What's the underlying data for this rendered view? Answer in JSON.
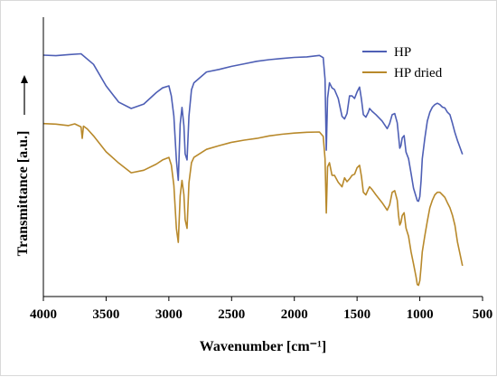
{
  "chart_data": {
    "type": "line",
    "title": "",
    "xlabel": "Wavenumber [cm⁻¹]",
    "ylabel": "Transmittance  [a.u.]",
    "xlim": [
      4000,
      500
    ],
    "x_reversed": true,
    "ylim": [
      0,
      1
    ],
    "y_ticks_shown": false,
    "xticks": [
      "4000",
      "3500",
      "3000",
      "2500",
      "2000",
      "1500",
      "1000",
      "500"
    ],
    "xtick_values": [
      4000,
      3500,
      3000,
      2500,
      2000,
      1500,
      1000,
      500
    ],
    "grid": false,
    "legend_position": "top-right",
    "series": [
      {
        "name": "HP",
        "color": "#4E5FB5",
        "x": [
          4000,
          3900,
          3800,
          3700,
          3600,
          3500,
          3400,
          3300,
          3200,
          3100,
          3050,
          3000,
          2980,
          2960,
          2940,
          2925,
          2910,
          2895,
          2880,
          2870,
          2855,
          2840,
          2820,
          2800,
          2700,
          2600,
          2500,
          2400,
          2300,
          2200,
          2100,
          2000,
          1900,
          1800,
          1770,
          1755,
          1745,
          1735,
          1720,
          1700,
          1680,
          1650,
          1620,
          1600,
          1580,
          1560,
          1540,
          1520,
          1500,
          1480,
          1465,
          1450,
          1430,
          1410,
          1400,
          1380,
          1350,
          1300,
          1260,
          1240,
          1220,
          1200,
          1180,
          1170,
          1160,
          1150,
          1140,
          1125,
          1110,
          1090,
          1070,
          1050,
          1030,
          1020,
          1010,
          1000,
          990,
          980,
          960,
          940,
          920,
          900,
          880,
          860,
          840,
          820,
          800,
          780,
          760,
          740,
          720,
          700,
          680,
          660
        ],
        "y": [
          0.864,
          0.862,
          0.866,
          0.869,
          0.831,
          0.754,
          0.696,
          0.673,
          0.689,
          0.73,
          0.747,
          0.754,
          0.718,
          0.646,
          0.489,
          0.416,
          0.617,
          0.677,
          0.612,
          0.511,
          0.489,
          0.646,
          0.74,
          0.765,
          0.804,
          0.813,
          0.824,
          0.833,
          0.842,
          0.848,
          0.852,
          0.856,
          0.858,
          0.863,
          0.855,
          0.778,
          0.524,
          0.71,
          0.765,
          0.747,
          0.741,
          0.709,
          0.645,
          0.636,
          0.655,
          0.718,
          0.718,
          0.709,
          0.732,
          0.75,
          0.706,
          0.651,
          0.642,
          0.66,
          0.673,
          0.663,
          0.651,
          0.628,
          0.601,
          0.619,
          0.651,
          0.655,
          0.622,
          0.577,
          0.531,
          0.54,
          0.568,
          0.576,
          0.517,
          0.494,
          0.441,
          0.388,
          0.358,
          0.343,
          0.341,
          0.358,
          0.415,
          0.493,
          0.566,
          0.628,
          0.66,
          0.678,
          0.687,
          0.692,
          0.687,
          0.678,
          0.675,
          0.66,
          0.651,
          0.62,
          0.586,
          0.559,
          0.534,
          0.509
        ]
      },
      {
        "name": "HP dried",
        "color": "#B8892B",
        "x": [
          4000,
          3900,
          3800,
          3750,
          3700,
          3690,
          3680,
          3650,
          3600,
          3500,
          3400,
          3300,
          3200,
          3100,
          3050,
          3000,
          2980,
          2960,
          2940,
          2925,
          2910,
          2895,
          2880,
          2870,
          2855,
          2840,
          2820,
          2800,
          2700,
          2600,
          2500,
          2400,
          2300,
          2200,
          2100,
          2000,
          1900,
          1800,
          1770,
          1755,
          1745,
          1735,
          1720,
          1700,
          1680,
          1650,
          1620,
          1600,
          1580,
          1560,
          1540,
          1520,
          1500,
          1480,
          1465,
          1450,
          1430,
          1410,
          1400,
          1380,
          1350,
          1300,
          1260,
          1240,
          1220,
          1200,
          1180,
          1170,
          1160,
          1150,
          1140,
          1125,
          1110,
          1090,
          1070,
          1050,
          1030,
          1020,
          1010,
          1000,
          990,
          980,
          960,
          940,
          920,
          900,
          880,
          860,
          840,
          820,
          800,
          780,
          760,
          740,
          720,
          700,
          680,
          660
        ],
        "y": [
          0.619,
          0.617,
          0.612,
          0.618,
          0.607,
          0.566,
          0.61,
          0.6,
          0.575,
          0.518,
          0.478,
          0.443,
          0.452,
          0.474,
          0.489,
          0.498,
          0.471,
          0.398,
          0.244,
          0.194,
          0.361,
          0.416,
          0.365,
          0.275,
          0.244,
          0.407,
          0.479,
          0.498,
          0.527,
          0.54,
          0.552,
          0.56,
          0.566,
          0.575,
          0.581,
          0.585,
          0.588,
          0.589,
          0.573,
          0.493,
          0.299,
          0.464,
          0.479,
          0.434,
          0.434,
          0.409,
          0.393,
          0.425,
          0.411,
          0.421,
          0.434,
          0.438,
          0.461,
          0.47,
          0.43,
          0.373,
          0.364,
          0.384,
          0.393,
          0.383,
          0.364,
          0.336,
          0.309,
          0.328,
          0.373,
          0.379,
          0.345,
          0.291,
          0.256,
          0.265,
          0.29,
          0.3,
          0.245,
          0.216,
          0.16,
          0.117,
          0.071,
          0.043,
          0.04,
          0.057,
          0.106,
          0.16,
          0.217,
          0.27,
          0.318,
          0.345,
          0.364,
          0.373,
          0.373,
          0.364,
          0.355,
          0.336,
          0.318,
          0.291,
          0.254,
          0.196,
          0.153,
          0.11
        ]
      }
    ]
  }
}
